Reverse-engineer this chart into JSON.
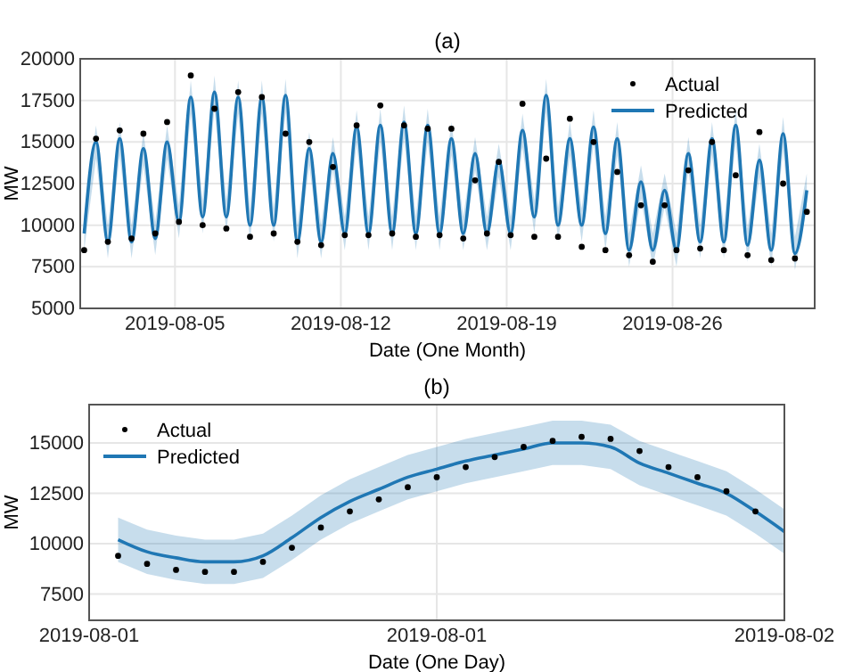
{
  "chart_data": [
    {
      "type": "scatter",
      "title": "(a)",
      "xlabel": "Date (One Month)",
      "ylabel": "MW",
      "xlim": [
        "2019-08-01",
        "2019-09-01"
      ],
      "xticks": [
        "2019-08-05",
        "2019-08-12",
        "2019-08-19",
        "2019-08-26"
      ],
      "ylim": [
        5000,
        20000
      ],
      "yticks": [
        5000,
        7500,
        10000,
        12500,
        15000,
        17500,
        20000
      ],
      "grid": true,
      "legend": "top right",
      "x": [
        "2019-08-01T04:00",
        "2019-08-01T16:00",
        "2019-08-02T04:00",
        "2019-08-02T16:00",
        "2019-08-03T04:00",
        "2019-08-03T16:00",
        "2019-08-04T04:00",
        "2019-08-04T16:00",
        "2019-08-05T04:00",
        "2019-08-05T16:00",
        "2019-08-06T04:00",
        "2019-08-06T16:00",
        "2019-08-07T04:00",
        "2019-08-07T16:00",
        "2019-08-08T04:00",
        "2019-08-08T16:00",
        "2019-08-09T04:00",
        "2019-08-09T16:00",
        "2019-08-10T04:00",
        "2019-08-10T16:00",
        "2019-08-11T04:00",
        "2019-08-11T16:00",
        "2019-08-12T04:00",
        "2019-08-12T16:00",
        "2019-08-13T04:00",
        "2019-08-13T16:00",
        "2019-08-14T04:00",
        "2019-08-14T16:00",
        "2019-08-15T04:00",
        "2019-08-15T16:00",
        "2019-08-16T04:00",
        "2019-08-16T16:00",
        "2019-08-17T04:00",
        "2019-08-17T16:00",
        "2019-08-18T04:00",
        "2019-08-18T16:00",
        "2019-08-19T04:00",
        "2019-08-19T16:00",
        "2019-08-20T04:00",
        "2019-08-20T16:00",
        "2019-08-21T04:00",
        "2019-08-21T16:00",
        "2019-08-22T04:00",
        "2019-08-22T16:00",
        "2019-08-23T04:00",
        "2019-08-23T16:00",
        "2019-08-24T04:00",
        "2019-08-24T16:00",
        "2019-08-25T04:00",
        "2019-08-25T16:00",
        "2019-08-26T04:00",
        "2019-08-26T16:00",
        "2019-08-27T04:00",
        "2019-08-27T16:00",
        "2019-08-28T04:00",
        "2019-08-28T16:00",
        "2019-08-29T04:00",
        "2019-08-29T16:00",
        "2019-08-30T04:00",
        "2019-08-30T16:00",
        "2019-08-31T04:00",
        "2019-08-31T16:00"
      ],
      "series": [
        {
          "name": "Actual",
          "type": "scatter",
          "marker": "circle",
          "color": "#000000",
          "values": [
            8500,
            15200,
            9000,
            15700,
            9200,
            15500,
            9500,
            16200,
            10200,
            19000,
            10000,
            17000,
            9800,
            18000,
            9300,
            17700,
            9500,
            15500,
            9000,
            15000,
            8800,
            13500,
            9400,
            16000,
            9400,
            17200,
            9500,
            16000,
            9300,
            15800,
            9400,
            15800,
            9200,
            12700,
            9500,
            13800,
            9400,
            17300,
            9300,
            14000,
            9300,
            16400,
            8700,
            15000,
            8500,
            13200,
            8200,
            11200,
            7800,
            11200,
            8500,
            13300,
            8600,
            15000,
            8500,
            13000,
            8200,
            15600,
            7900,
            12500,
            8000,
            10800
          ]
        },
        {
          "name": "Predicted",
          "type": "line",
          "color": "#1f77b4",
          "values": [
            9500,
            15000,
            9000,
            15200,
            9000,
            14600,
            9200,
            15000,
            10200,
            17700,
            10500,
            18000,
            10500,
            17700,
            10000,
            17700,
            10000,
            17800,
            9000,
            14600,
            9000,
            14300,
            9500,
            15900,
            9500,
            16000,
            9500,
            16200,
            9500,
            16000,
            9500,
            15200,
            9500,
            14300,
            9500,
            13900,
            9500,
            15700,
            10500,
            17800,
            10000,
            15200,
            10000,
            15900,
            9500,
            15200,
            8500,
            12600,
            8500,
            12100,
            8500,
            14300,
            9000,
            15200,
            9000,
            16000,
            8800,
            13900,
            8500,
            15500,
            8300,
            12100
          ],
          "lower": [
            8500,
            14000,
            8000,
            14200,
            8000,
            13600,
            8200,
            14000,
            9200,
            16700,
            9500,
            17000,
            9500,
            16700,
            9000,
            16700,
            9000,
            16800,
            8000,
            13600,
            8000,
            13300,
            8500,
            14900,
            8500,
            15000,
            8500,
            15200,
            8500,
            15000,
            8500,
            14200,
            8500,
            13300,
            8500,
            12900,
            8500,
            14700,
            9500,
            16800,
            9000,
            14200,
            9000,
            14900,
            8500,
            14200,
            7500,
            11600,
            7500,
            11100,
            7500,
            13300,
            8000,
            14200,
            8000,
            15000,
            7800,
            12900,
            7500,
            14500,
            7300,
            11100
          ],
          "upper": [
            10500,
            16000,
            10000,
            16200,
            10000,
            15600,
            10200,
            16000,
            11200,
            18700,
            11500,
            19000,
            11500,
            18700,
            11000,
            18700,
            11000,
            18800,
            10000,
            15600,
            10000,
            15300,
            10500,
            16900,
            10500,
            17000,
            10500,
            17200,
            10500,
            17000,
            10500,
            16200,
            10500,
            15300,
            10500,
            14900,
            10500,
            16700,
            11500,
            18800,
            11000,
            16200,
            11000,
            16900,
            10500,
            16200,
            9500,
            13600,
            9500,
            13100,
            9500,
            15300,
            10000,
            16200,
            10000,
            17000,
            9800,
            14900,
            9500,
            16500,
            9300,
            13100
          ]
        }
      ]
    },
    {
      "type": "scatter",
      "title": "(b)",
      "xlabel": "Date (One Day)",
      "ylabel": "MW",
      "xlim": [
        "2019-08-01T00:00",
        "2019-08-02T00:00"
      ],
      "xticks": [
        {
          "value": "2019-08-01T00:00",
          "label": "2019-08-01"
        },
        {
          "value": "2019-08-01T12:00",
          "label": "2019-08-01"
        },
        {
          "value": "2019-08-02T00:00",
          "label": "2019-08-02"
        }
      ],
      "ylim": [
        6200,
        16900
      ],
      "yticks": [
        7500,
        10000,
        12500,
        15000
      ],
      "grid": true,
      "legend": "top left",
      "series": [
        {
          "name": "Actual",
          "type": "scatter",
          "marker": "circle",
          "color": "#000000",
          "x": [
            "2019-08-01T01:00",
            "2019-08-01T02:00",
            "2019-08-01T03:00",
            "2019-08-01T04:00",
            "2019-08-01T05:00",
            "2019-08-01T06:00",
            "2019-08-01T07:00",
            "2019-08-01T08:00",
            "2019-08-01T09:00",
            "2019-08-01T10:00",
            "2019-08-01T11:00",
            "2019-08-01T12:00",
            "2019-08-01T13:00",
            "2019-08-01T14:00",
            "2019-08-01T15:00",
            "2019-08-01T16:00",
            "2019-08-01T17:00",
            "2019-08-01T18:00",
            "2019-08-01T19:00",
            "2019-08-01T20:00",
            "2019-08-01T21:00",
            "2019-08-01T22:00",
            "2019-08-01T23:00"
          ],
          "values": [
            9400,
            9000,
            8700,
            8600,
            8600,
            9100,
            9800,
            10800,
            11600,
            12200,
            12800,
            13300,
            13800,
            14300,
            14800,
            15100,
            15300,
            15200,
            14600,
            13800,
            13300,
            12600,
            11600
          ]
        },
        {
          "name": "Predicted",
          "type": "line",
          "color": "#1f77b4",
          "x": [
            "2019-08-01T01:00",
            "2019-08-01T02:00",
            "2019-08-01T03:00",
            "2019-08-01T04:00",
            "2019-08-01T05:00",
            "2019-08-01T06:00",
            "2019-08-01T07:00",
            "2019-08-01T08:00",
            "2019-08-01T09:00",
            "2019-08-01T10:00",
            "2019-08-01T11:00",
            "2019-08-01T12:00",
            "2019-08-01T13:00",
            "2019-08-01T14:00",
            "2019-08-01T15:00",
            "2019-08-01T16:00",
            "2019-08-01T17:00",
            "2019-08-01T18:00",
            "2019-08-01T19:00",
            "2019-08-01T20:00",
            "2019-08-01T21:00",
            "2019-08-01T22:00",
            "2019-08-01T23:00",
            "2019-08-02T00:00"
          ],
          "values": [
            10200,
            9600,
            9300,
            9100,
            9100,
            9400,
            10300,
            11300,
            12100,
            12700,
            13300,
            13700,
            14100,
            14400,
            14700,
            15000,
            15000,
            14800,
            14000,
            13500,
            13000,
            12500,
            11600,
            10600
          ],
          "lower": [
            9100,
            8500,
            8200,
            8000,
            8000,
            8300,
            9200,
            10200,
            11000,
            11600,
            12200,
            12600,
            13000,
            13300,
            13600,
            13900,
            13900,
            13700,
            12900,
            12400,
            11900,
            11400,
            10500,
            9500
          ],
          "upper": [
            11300,
            10700,
            10400,
            10200,
            10200,
            10500,
            11400,
            12400,
            13200,
            13800,
            14400,
            14800,
            15200,
            15500,
            15800,
            16100,
            16100,
            15900,
            15100,
            14600,
            14100,
            13600,
            12700,
            11700
          ]
        }
      ]
    }
  ]
}
